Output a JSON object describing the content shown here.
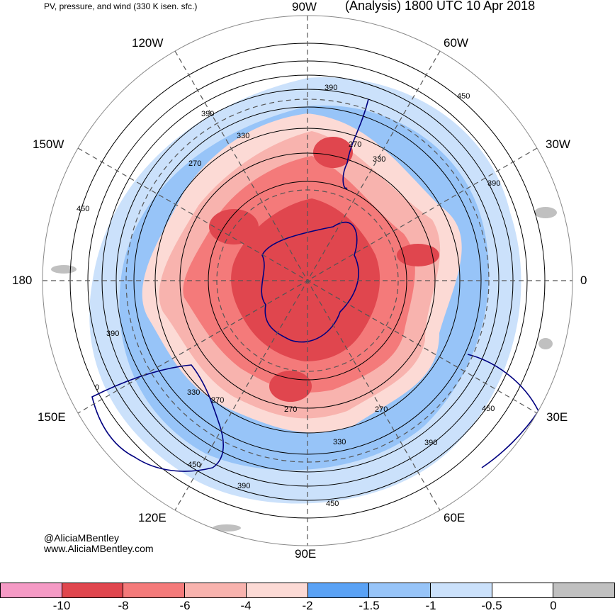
{
  "title_left": "PV, pressure, and wind (330 K isen. sfc.)",
  "title_right": "(Analysis) 1800 UTC 10 Apr 2018",
  "longitude_labels": {
    "top": "90W",
    "lon120w": "120W",
    "lon60w": "60W",
    "lon150w": "150W",
    "lon30w": "30W",
    "left": "180",
    "right": "0",
    "lon150e": "150E",
    "lon30e": "30E",
    "lon120e": "120E",
    "lon60e": "60E",
    "bottom": "90E"
  },
  "contour_labels": [
    "390",
    "450",
    "390",
    "330",
    "270",
    "330",
    "270",
    "390",
    "450",
    "390",
    "0",
    "330",
    "270",
    "270",
    "270",
    "330",
    "390",
    "450",
    "450",
    "390",
    "450"
  ],
  "credit": {
    "handle": "@AliciaMBentley",
    "website": "www.AliciaMBentley.com"
  },
  "colorbar": {
    "colors": [
      "#f59ac5",
      "#e0464e",
      "#f47a7a",
      "#f8b3ae",
      "#fcdad5",
      "#5aa2f5",
      "#97c4f8",
      "#cbe1fb",
      "#ffffff",
      "#c0c0c0"
    ],
    "ticks": [
      "-10",
      "-8",
      "-6",
      "-4",
      "-2",
      "-1.5",
      "-1",
      "-0.5",
      "0"
    ]
  }
}
